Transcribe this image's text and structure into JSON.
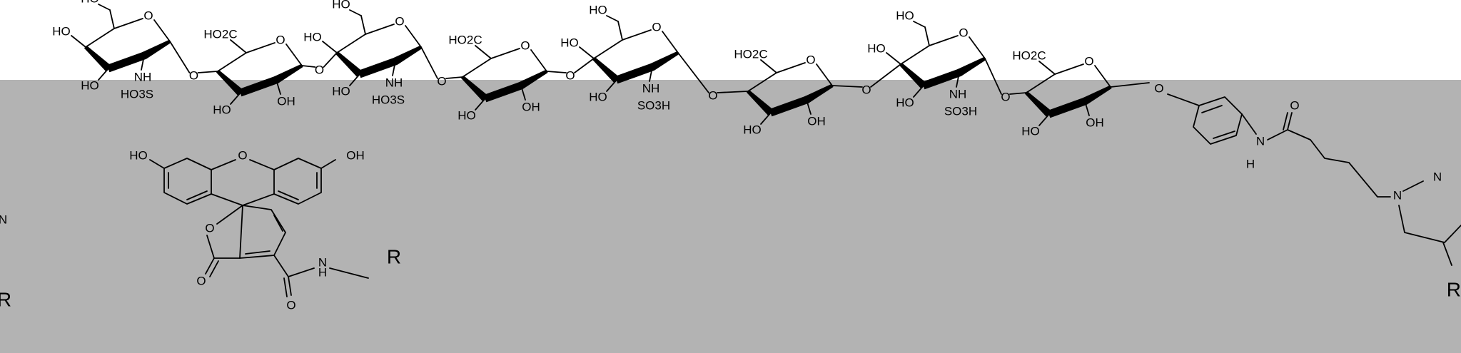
{
  "figure": {
    "colors": {
      "gray_panel": "#b3b3b3",
      "background": "#ffffff",
      "ink": "#000000"
    },
    "atoms": {
      "oxygen": "O",
      "hydroxyl": "HO",
      "hydroxyl_right": "OH",
      "carboxyl": "HO2C",
      "sulfamate_nh": "NH",
      "sulfo": "SO3H",
      "sulfo_left": "HO3S",
      "nitrogen": "N",
      "hydrogen": "H",
      "r_group": "R"
    }
  }
}
